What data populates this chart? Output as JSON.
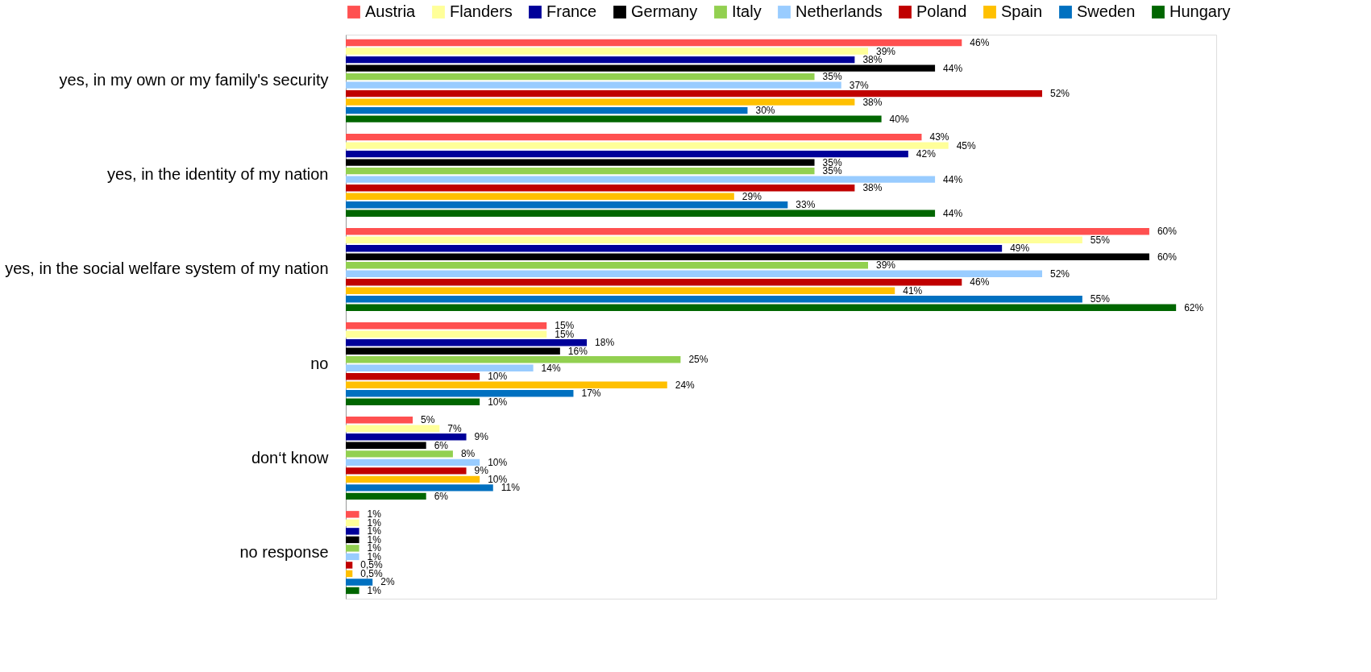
{
  "chart_data": {
    "type": "bar",
    "orientation": "horizontal",
    "legend": "top",
    "categories": [
      "yes, in my own or my family's security",
      "yes, in the identity of my nation",
      "yes, in the social welfare system of my nation",
      "no",
      "don‘t know",
      "no response"
    ],
    "series": [
      {
        "name": "Austria",
        "color": "#ff5050",
        "values": [
          46,
          43,
          60,
          15,
          5,
          1
        ],
        "value_labels": [
          "46%",
          "43%",
          "60%",
          "15%",
          "5%",
          "1%"
        ]
      },
      {
        "name": "Flanders",
        "color": "#ffff99",
        "values": [
          39,
          45,
          55,
          15,
          7,
          1
        ],
        "value_labels": [
          "39%",
          "45%",
          "55%",
          "15%",
          "7%",
          "1%"
        ]
      },
      {
        "name": "France",
        "color": "#000099",
        "values": [
          38,
          42,
          49,
          18,
          9,
          1
        ],
        "value_labels": [
          "38%",
          "42%",
          "49%",
          "18%",
          "9%",
          "1%"
        ]
      },
      {
        "name": "Germany",
        "color": "#000000",
        "values": [
          44,
          35,
          60,
          16,
          6,
          1
        ],
        "value_labels": [
          "44%",
          "35%",
          "60%",
          "16%",
          "6%",
          "1%"
        ]
      },
      {
        "name": "Italy",
        "color": "#92d050",
        "values": [
          35,
          35,
          39,
          25,
          8,
          1
        ],
        "value_labels": [
          "35%",
          "35%",
          "39%",
          "25%",
          "8%",
          "1%"
        ]
      },
      {
        "name": "Netherlands",
        "color": "#99ccff",
        "values": [
          37,
          44,
          52,
          14,
          10,
          1
        ],
        "value_labels": [
          "37%",
          "44%",
          "52%",
          "14%",
          "10%",
          "1%"
        ]
      },
      {
        "name": "Poland",
        "color": "#c00000",
        "values": [
          52,
          38,
          46,
          10,
          9,
          0.5
        ],
        "value_labels": [
          "52%",
          "38%",
          "46%",
          "10%",
          "9%",
          "0,5%"
        ]
      },
      {
        "name": "Spain",
        "color": "#ffc000",
        "values": [
          38,
          29,
          41,
          24,
          10,
          0.5
        ],
        "value_labels": [
          "38%",
          "29%",
          "41%",
          "24%",
          "10%",
          "0,5%"
        ]
      },
      {
        "name": "Sweden",
        "color": "#0070c0",
        "values": [
          30,
          33,
          55,
          17,
          11,
          2
        ],
        "value_labels": [
          "30%",
          "33%",
          "55%",
          "17%",
          "11%",
          "2%"
        ]
      },
      {
        "name": "Hungary",
        "color": "#006600",
        "values": [
          40,
          44,
          62,
          10,
          6,
          1
        ],
        "value_labels": [
          "40%",
          "44%",
          "62%",
          "10%",
          "6%",
          "1%"
        ]
      }
    ]
  }
}
